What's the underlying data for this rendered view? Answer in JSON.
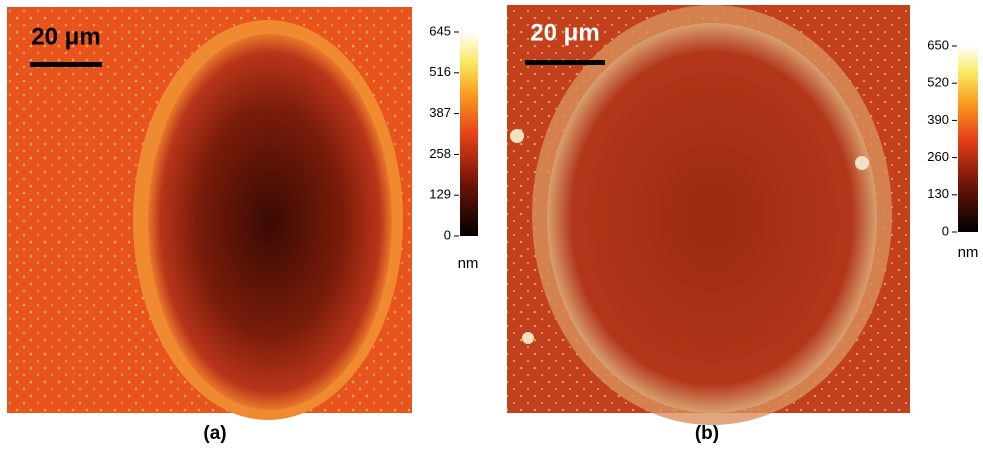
{
  "panels": [
    {
      "scale_bar": "20 μm",
      "caption": "(a)",
      "colorbar": {
        "lim": [
          0,
          645
        ],
        "ticks": [
          0,
          129,
          258,
          387,
          516,
          645
        ],
        "unit": "nm"
      }
    },
    {
      "scale_bar": "20 μm",
      "caption": "(b)",
      "colorbar": {
        "lim": [
          0,
          650
        ],
        "ticks": [
          0,
          130,
          260,
          390,
          520,
          650
        ],
        "unit": "nm"
      }
    }
  ]
}
